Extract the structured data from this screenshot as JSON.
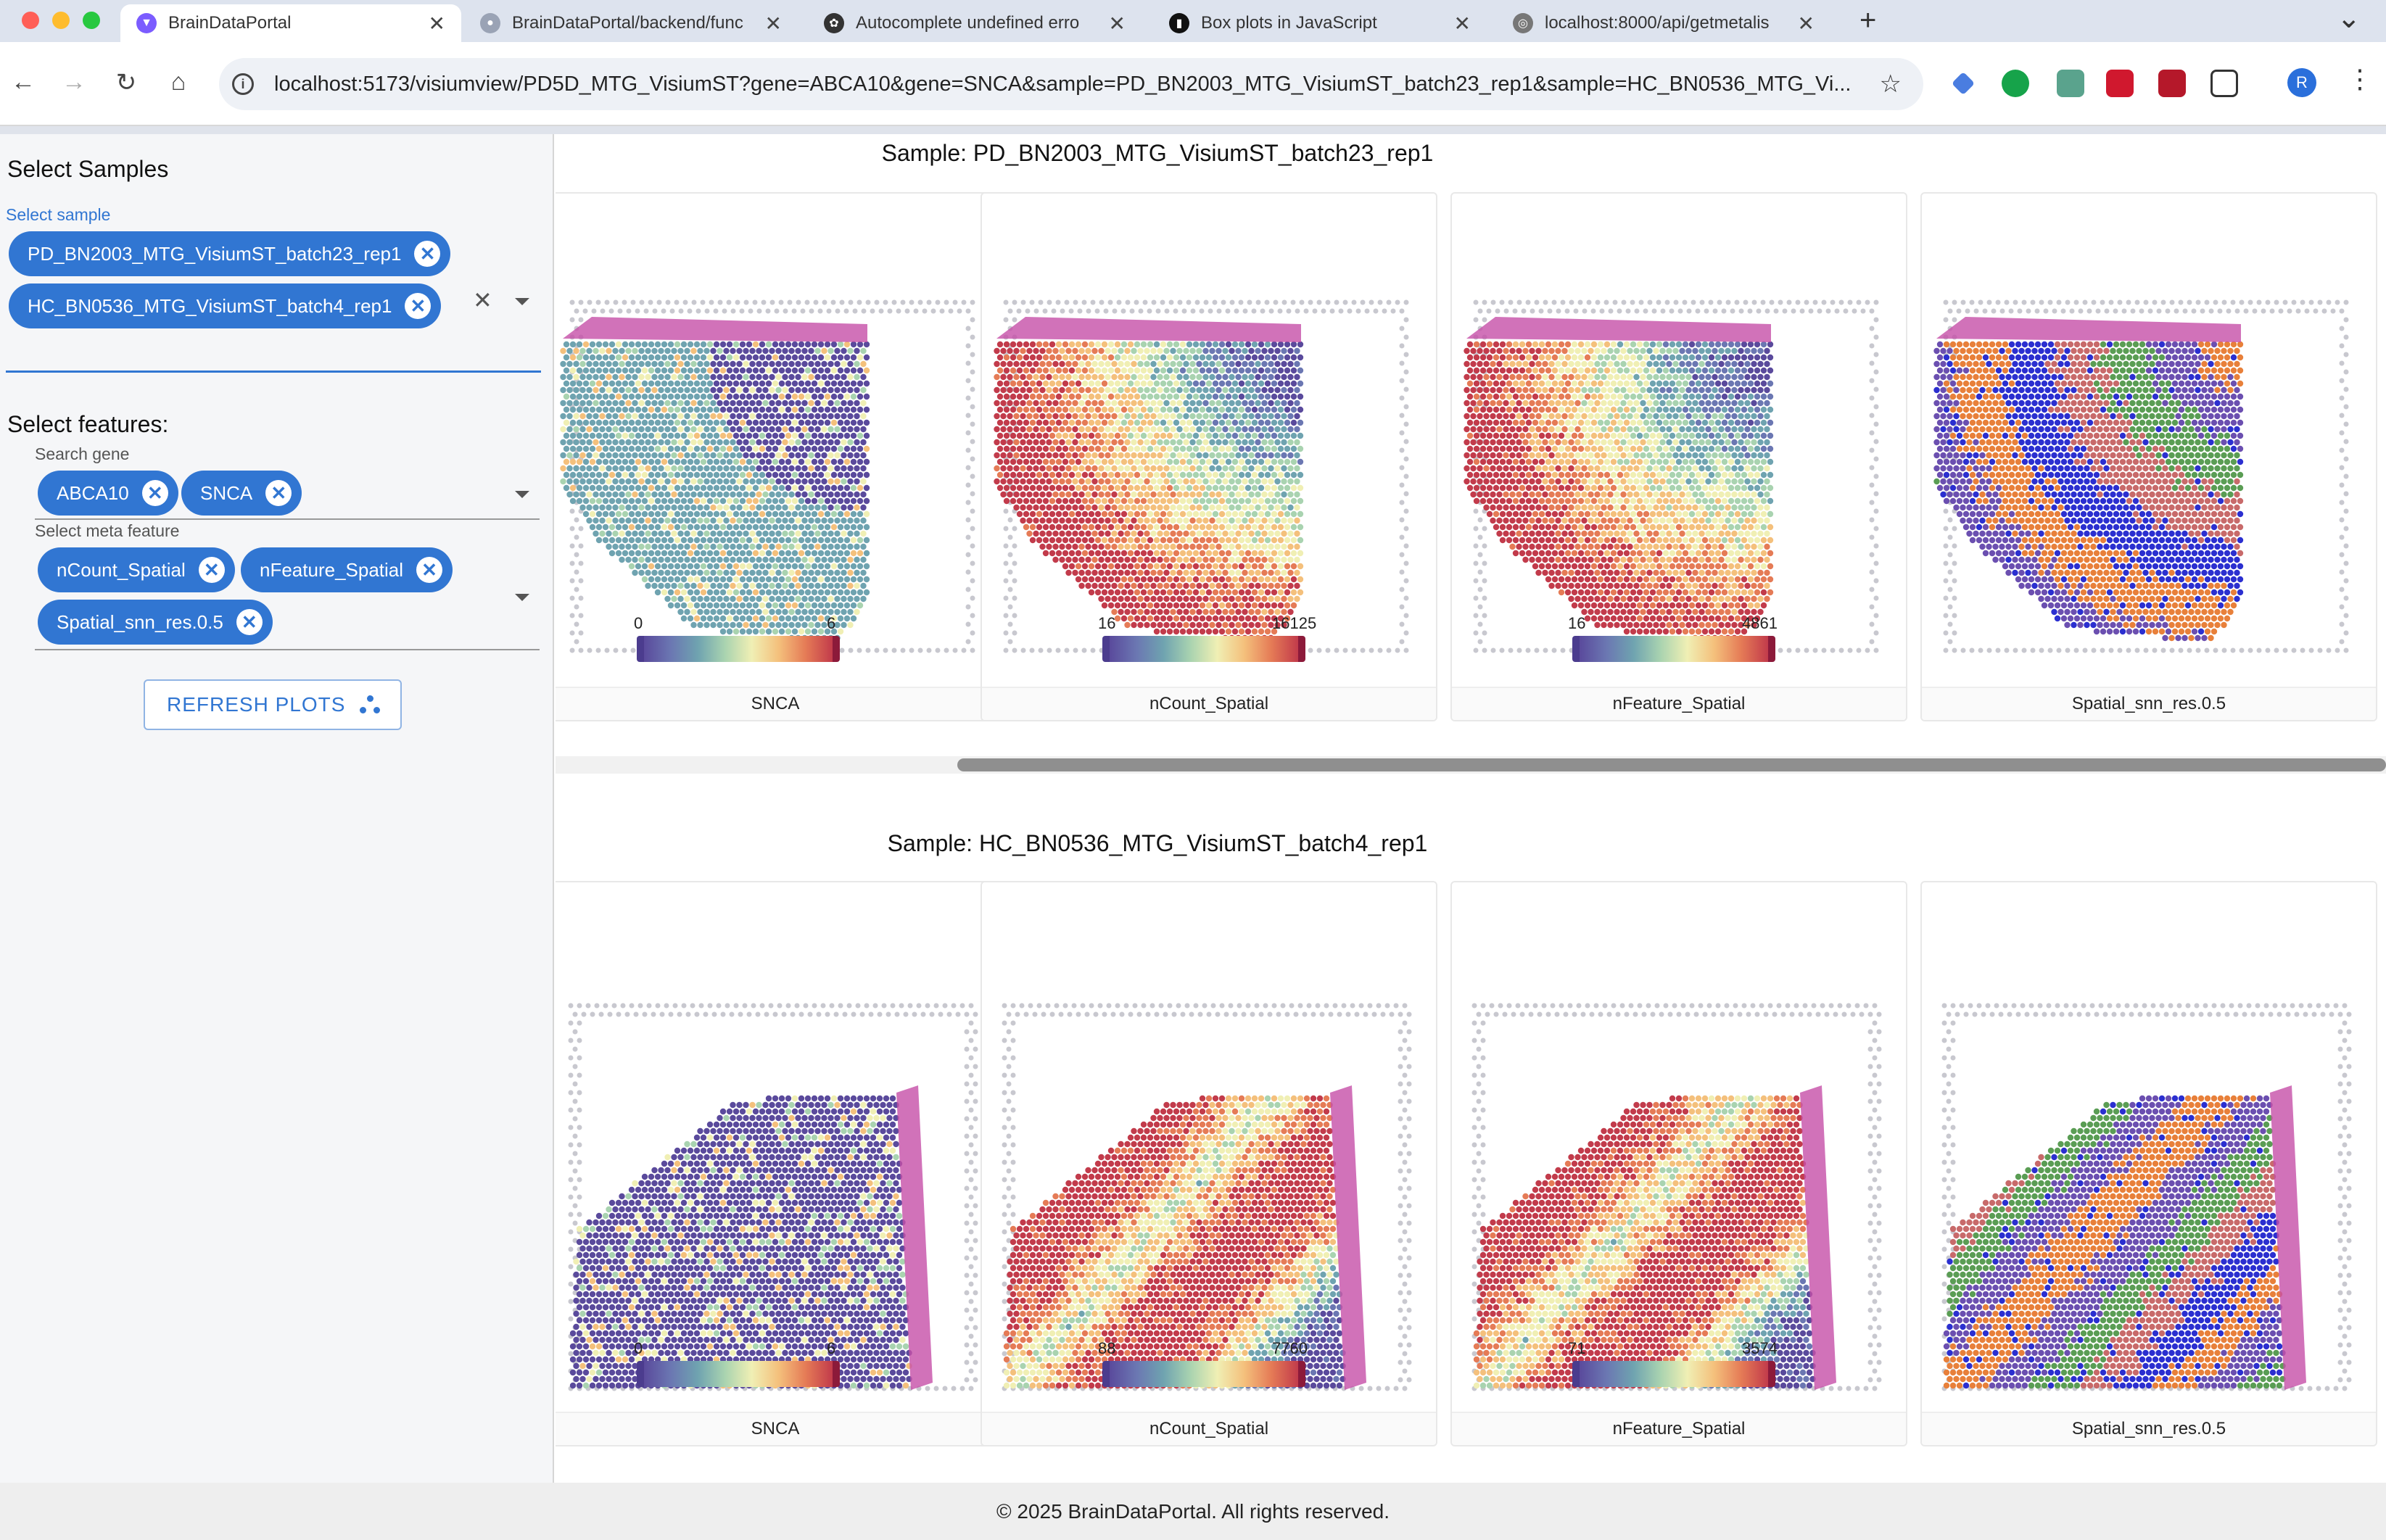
{
  "browser": {
    "tabs": [
      {
        "label": "BrainDataPortal",
        "active": true,
        "icon": "vite-icon",
        "color": "#7b5cff"
      },
      {
        "label": "BrainDataPortal/backend/func",
        "active": false,
        "icon": "github-icon",
        "color": "#9aa3b5"
      },
      {
        "label": "Autocomplete undefined erro",
        "active": false,
        "icon": "openai-icon",
        "color": "#333333"
      },
      {
        "label": "Box plots in JavaScript",
        "active": false,
        "icon": "plotly-icon",
        "color": "#111111"
      },
      {
        "label": "localhost:8000/api/getmetalis",
        "active": false,
        "icon": "globe-icon",
        "color": "#777777"
      }
    ],
    "new_tab": "+",
    "tab_menu": "⌄",
    "url": "localhost:5173/visiumview/PD5D_MTG_VisiumST?gene=ABCA10&gene=SNCA&sample=PD_BN2003_MTG_VisiumST_batch23_rep1&sample=HC_BN0536_MTG_Vi...",
    "profile_initial": "R"
  },
  "sidebar": {
    "select_samples_title": "Select Samples",
    "sample_label": "Select sample",
    "samples": [
      "PD_BN2003_MTG_VisiumST_batch23_rep1",
      "HC_BN0536_MTG_VisiumST_batch4_rep1"
    ],
    "clear": "✕",
    "select_features_title": "Select features:",
    "gene_label": "Search gene",
    "genes": [
      "ABCA10",
      "SNCA"
    ],
    "meta_label": "Select meta feature",
    "meta_features": [
      "nCount_Spatial",
      "nFeature_Spatial",
      "Spatial_snn_res.0.5"
    ],
    "refresh_button": "REFRESH PLOTS"
  },
  "main": {
    "sections": [
      {
        "title": "Sample: PD_BN2003_MTG_VisiumST_batch23_rep1",
        "plots": [
          {
            "label": "SNCA",
            "min": "0",
            "max": "6",
            "kind": "snca"
          },
          {
            "label": "nCount_Spatial",
            "min": "16",
            "max": "16125",
            "kind": "ncount"
          },
          {
            "label": "nFeature_Spatial",
            "min": "16",
            "max": "4861",
            "kind": "nfeature"
          },
          {
            "label": "Spatial_snn_res.0.5",
            "min": "",
            "max": "",
            "kind": "cluster"
          }
        ]
      },
      {
        "title": "Sample: HC_BN0536_MTG_VisiumST_batch4_rep1",
        "plots": [
          {
            "label": "SNCA",
            "min": "0",
            "max": "6",
            "kind": "snca"
          },
          {
            "label": "nCount_Spatial",
            "min": "88",
            "max": "7760",
            "kind": "ncount"
          },
          {
            "label": "nFeature_Spatial",
            "min": "71",
            "max": "3574",
            "kind": "nfeature"
          },
          {
            "label": "Spatial_snn_res.0.5",
            "min": "",
            "max": "",
            "kind": "cluster"
          }
        ]
      }
    ]
  },
  "footer": "© 2025 BrainDataPortal. All rights reserved."
}
